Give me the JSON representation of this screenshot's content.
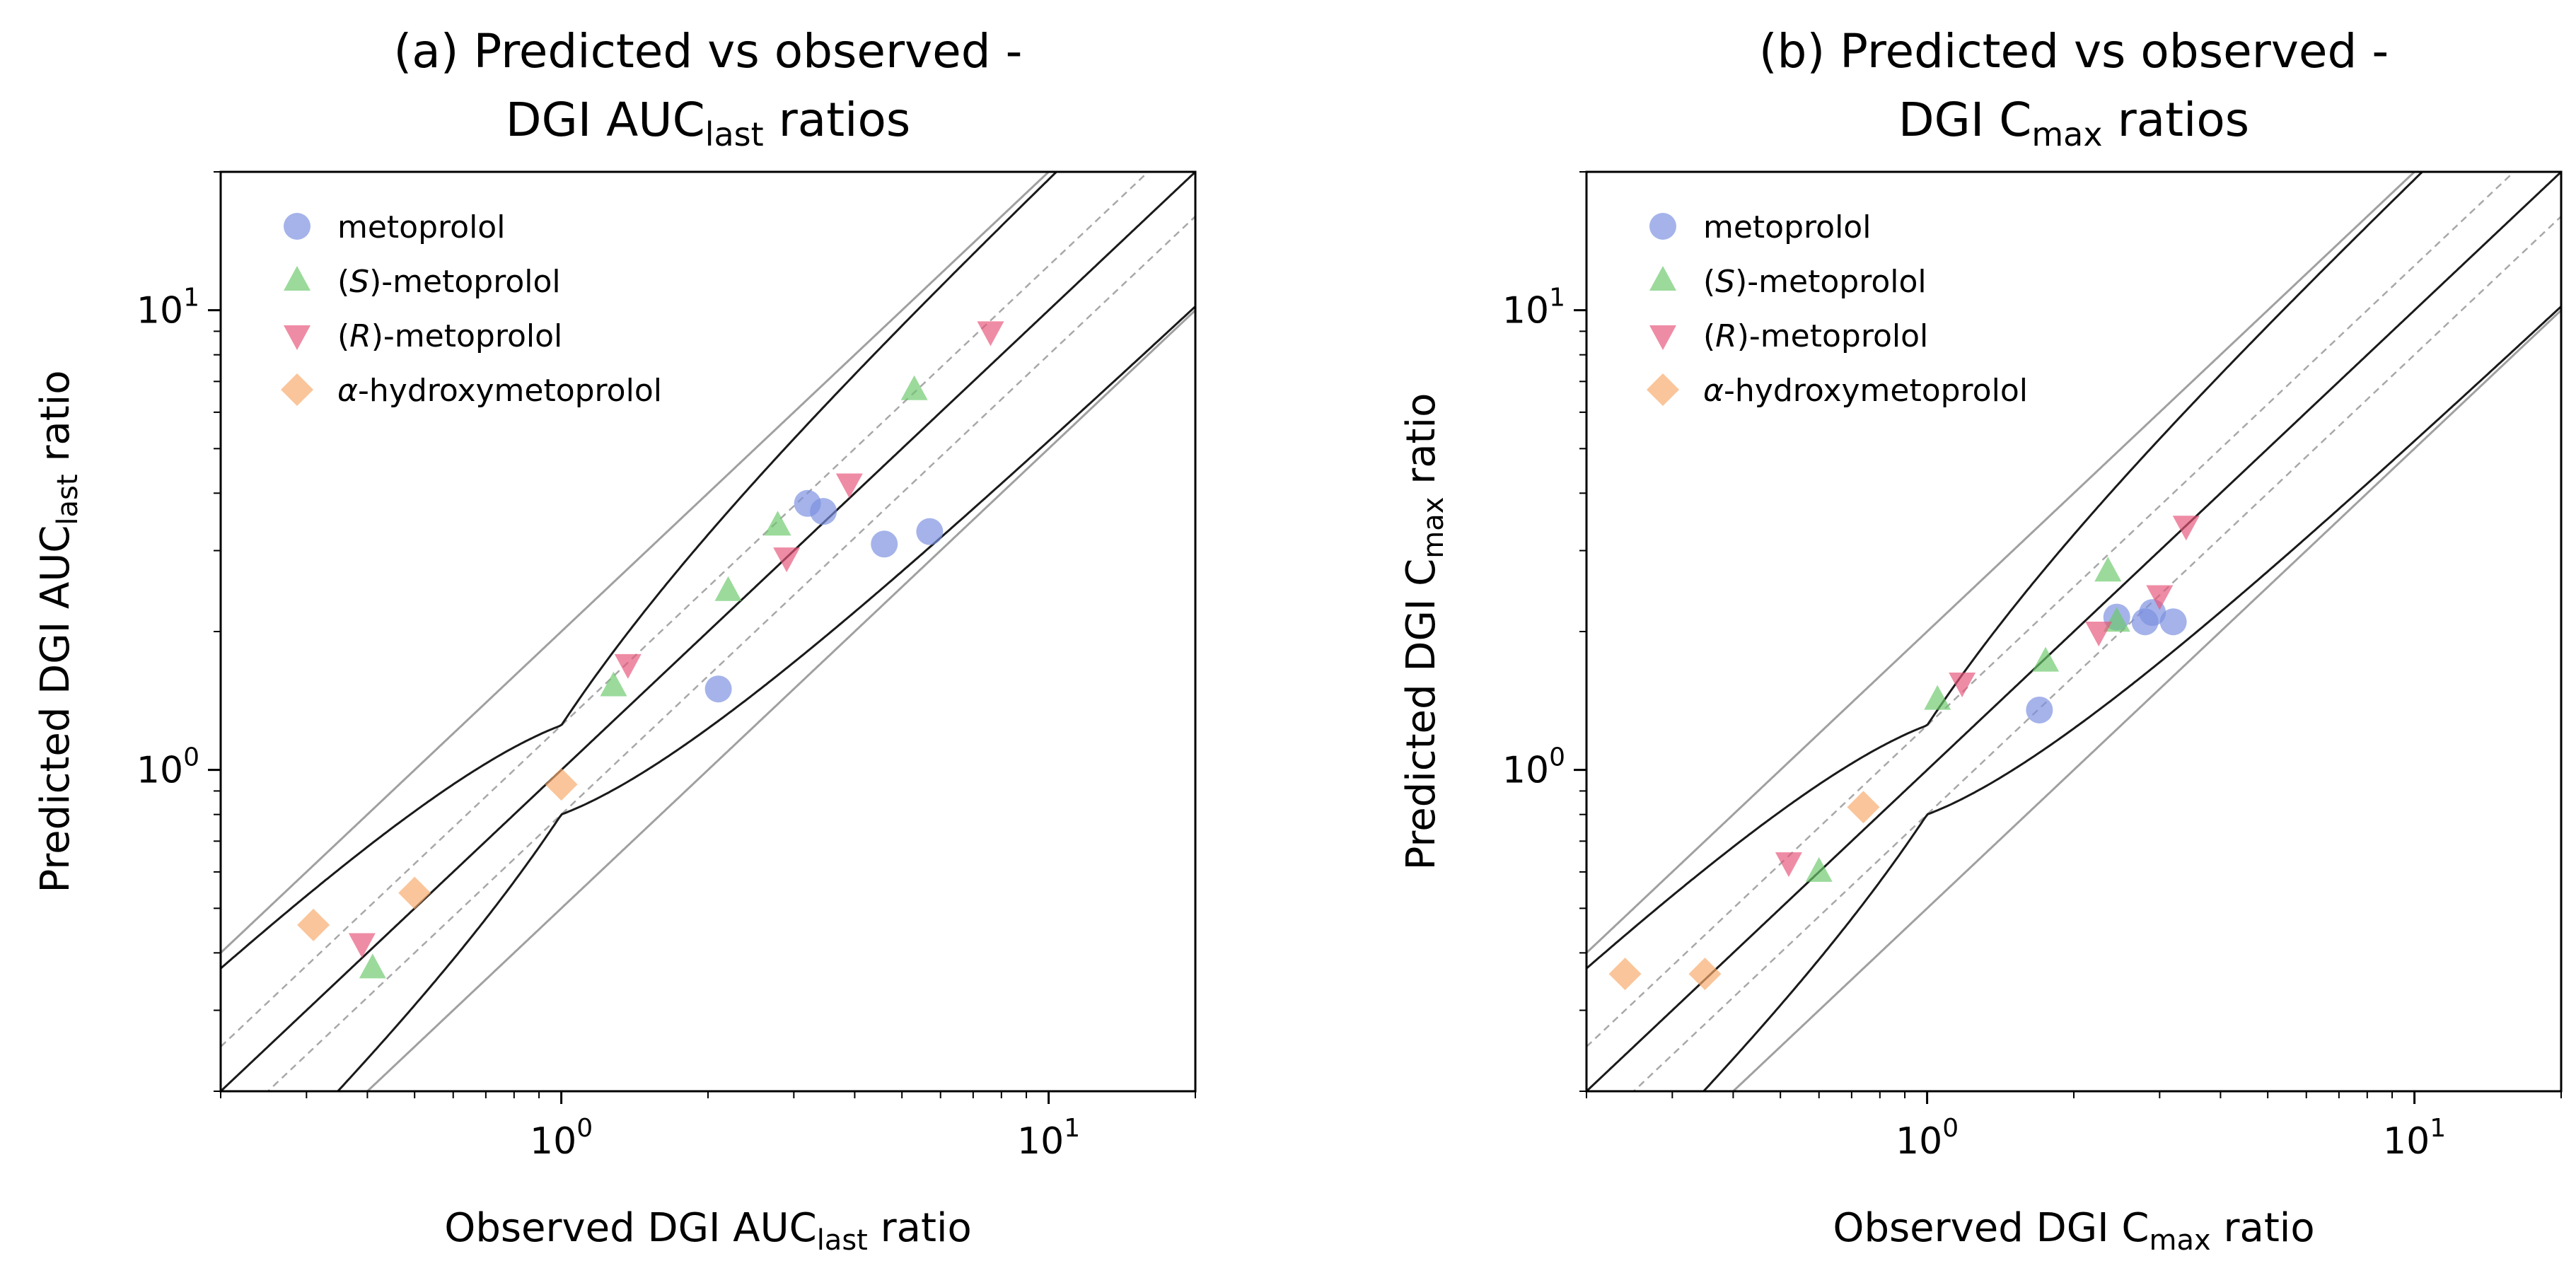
{
  "chart_data": [
    {
      "type": "scatter",
      "panel": "a",
      "title_main": "(a) Predicted vs observed -",
      "title_prefix": "DGI AUC",
      "title_sub": "last",
      "title_suffix": " ratios",
      "xlabel_prefix": "Observed DGI AUC",
      "xlabel_sub": "last",
      "xlabel_suffix": " ratio",
      "ylabel_prefix": "Predicted DGI AUC",
      "ylabel_sub": "last",
      "ylabel_suffix": " ratio",
      "xscale": "log",
      "yscale": "log",
      "xlim": [
        0.2,
        20
      ],
      "ylim": [
        0.2,
        20
      ],
      "ticks": [
        {
          "base": "10",
          "exp": "0",
          "value": 1
        },
        {
          "base": "10",
          "exp": "1",
          "value": 10
        }
      ],
      "legend": "top-left",
      "reference_lines": {
        "identity": "1:1",
        "dashed": [
          0.8,
          1.25
        ],
        "grey": [
          0.5,
          2
        ],
        "guest_limits_delta": 1.25
      },
      "series": [
        {
          "name": "metoprolol",
          "italic_part": "",
          "rest": "metoprolol",
          "marker": "circle",
          "color": "#7b8fe0",
          "points": [
            [
              2.1,
              1.5
            ],
            [
              3.2,
              3.8
            ],
            [
              3.45,
              3.65
            ],
            [
              4.6,
              3.1
            ],
            [
              5.7,
              3.3
            ]
          ]
        },
        {
          "name": "(S)-metoprolol",
          "italic_part": "S",
          "rest": "-metoprolol",
          "marker": "triangle-up",
          "color": "#6cc86c",
          "points": [
            [
              0.41,
              0.37
            ],
            [
              1.28,
              1.52
            ],
            [
              2.2,
              2.45
            ],
            [
              2.78,
              3.4
            ],
            [
              5.3,
              6.7
            ]
          ]
        },
        {
          "name": "(R)-metoprolol",
          "italic_part": "R",
          "rest": "-metoprolol",
          "marker": "triangle-down",
          "color": "#e8557a",
          "points": [
            [
              0.39,
              0.42
            ],
            [
              1.37,
              1.7
            ],
            [
              2.9,
              2.9
            ],
            [
              3.9,
              4.2
            ],
            [
              7.6,
              9.0
            ]
          ]
        },
        {
          "name": "α-hydroxymetoprolol",
          "italic_part": "α",
          "rest": "-hydroxymetoprolol",
          "marker": "diamond",
          "color": "#f7a96a",
          "points": [
            [
              0.31,
              0.46
            ],
            [
              0.5,
              0.54
            ],
            [
              1.0,
              0.93
            ]
          ]
        }
      ]
    },
    {
      "type": "scatter",
      "panel": "b",
      "title_main": "(b) Predicted vs observed -",
      "title_prefix": "DGI C",
      "title_sub": "max",
      "title_suffix": " ratios",
      "xlabel_prefix": "Observed DGI C",
      "xlabel_sub": "max",
      "xlabel_suffix": " ratio",
      "ylabel_prefix": "Predicted DGI C",
      "ylabel_sub": "max",
      "ylabel_suffix": " ratio",
      "xscale": "log",
      "yscale": "log",
      "xlim": [
        0.2,
        20
      ],
      "ylim": [
        0.2,
        20
      ],
      "ticks": [
        {
          "base": "10",
          "exp": "0",
          "value": 1
        },
        {
          "base": "10",
          "exp": "1",
          "value": 10
        }
      ],
      "legend": "top-left",
      "reference_lines": {
        "identity": "1:1",
        "dashed": [
          0.8,
          1.25
        ],
        "grey": [
          0.5,
          2
        ],
        "guest_limits_delta": 1.25
      },
      "series": [
        {
          "name": "metoprolol",
          "italic_part": "",
          "rest": "metoprolol",
          "marker": "circle",
          "color": "#7b8fe0",
          "points": [
            [
              1.7,
              1.35
            ],
            [
              2.45,
              2.15
            ],
            [
              2.8,
              2.1
            ],
            [
              2.9,
              2.2
            ],
            [
              3.2,
              2.1
            ]
          ]
        },
        {
          "name": "(S)-metoprolol",
          "italic_part": "S",
          "rest": "-metoprolol",
          "marker": "triangle-up",
          "color": "#6cc86c",
          "points": [
            [
              0.6,
              0.6
            ],
            [
              1.05,
              1.42
            ],
            [
              1.75,
              1.72
            ],
            [
              2.35,
              2.7
            ],
            [
              2.45,
              2.1
            ]
          ]
        },
        {
          "name": "(R)-metoprolol",
          "italic_part": "R",
          "rest": "-metoprolol",
          "marker": "triangle-down",
          "color": "#e8557a",
          "points": [
            [
              0.52,
              0.63
            ],
            [
              1.18,
              1.55
            ],
            [
              2.25,
              2.0
            ],
            [
              3.0,
              2.4
            ],
            [
              3.4,
              3.4
            ]
          ]
        },
        {
          "name": "α-hydroxymetoprolol",
          "italic_part": "α",
          "rest": "-hydroxymetoprolol",
          "marker": "diamond",
          "color": "#f7a96a",
          "points": [
            [
              0.24,
              0.36
            ],
            [
              0.35,
              0.36
            ],
            [
              0.74,
              0.83
            ]
          ]
        }
      ]
    }
  ]
}
